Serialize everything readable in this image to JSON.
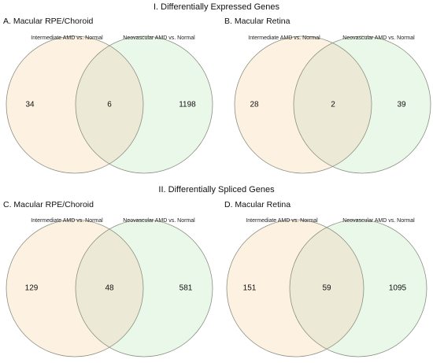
{
  "sections": [
    {
      "title": "I. Differentially Expressed Genes"
    },
    {
      "title": "II. Differentially Spliced Genes"
    }
  ],
  "panels": [
    {
      "title": "A. Macular RPE/Choroid",
      "left_label": "Intermediate AMD vs. Normal",
      "right_label": "Neovascular AMD vs. Normal",
      "left_only": "34",
      "overlap": "6",
      "right_only": "1198"
    },
    {
      "title": "B. Macular Retina",
      "left_label": "Intermediate AMD vs. Normal",
      "right_label": "Neovascular AMD vs. Normal",
      "left_only": "28",
      "overlap": "2",
      "right_only": "39"
    },
    {
      "title": "C. Macular RPE/Choroid",
      "left_label": "Intermediate AMD vs. Normal",
      "right_label": "Neovascular AMD vs. Normal",
      "left_only": "129",
      "overlap": "48",
      "right_only": "581"
    },
    {
      "title": "D. Macular Retina",
      "left_label": "Intermediate AMD vs. Normal",
      "right_label": "Neovascular AMD vs. Normal",
      "left_only": "151",
      "overlap": "59",
      "right_only": "1095"
    }
  ],
  "colors": {
    "left_fill": "#fdf1e2",
    "right_fill": "#eaf8ea",
    "overlap_fill": "#ece9d6",
    "stroke": "#8a8f80"
  }
}
